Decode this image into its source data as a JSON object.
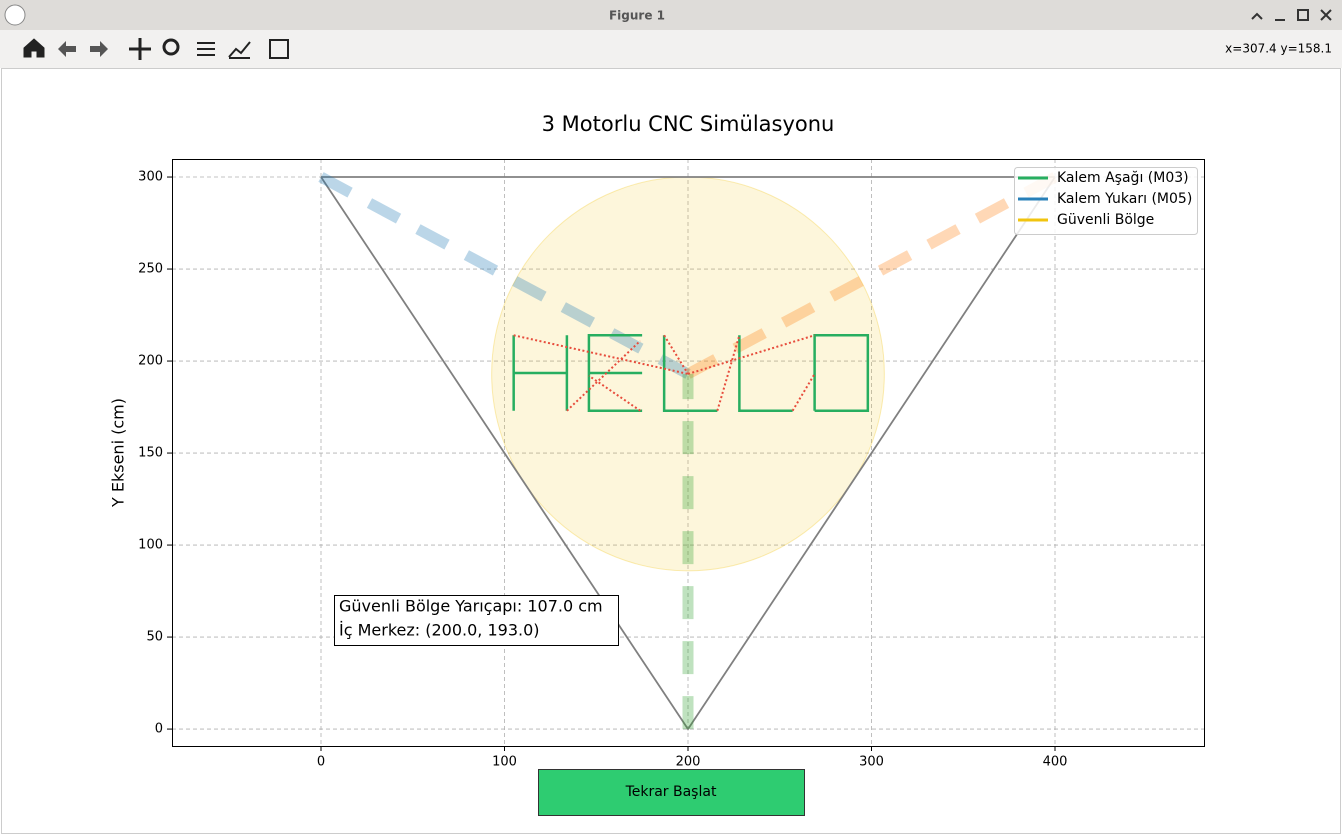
{
  "window": {
    "title": "Figure 1",
    "coords": "x=307.4 y=158.1"
  },
  "chart_data": {
    "type": "line",
    "title": "3 Motorlu CNC Simülasyonu",
    "ylabel": "Y Ekseni (cm)",
    "xlim": [
      -81.2,
      481.2
    ],
    "ylim": [
      -9.2,
      309.8
    ],
    "xticks": [
      0,
      100,
      200,
      300,
      400
    ],
    "yticks": [
      0,
      50,
      100,
      150,
      200,
      250,
      300
    ],
    "grid": true,
    "series": [
      {
        "color": "#808080",
        "linestyle": "solid",
        "linewidth": 1.8,
        "alpha": 1,
        "x": [
          0,
          200,
          400,
          null,
          0,
          400
        ],
        "y": [
          300,
          0,
          300,
          null,
          300,
          300
        ]
      },
      {
        "color": "#1f77b4",
        "linestyle": "dashed",
        "linewidth": 11,
        "alpha": 0.3,
        "x": [
          0,
          200
        ],
        "y": [
          300,
          193
        ]
      },
      {
        "color": "#ff7f0e",
        "linestyle": "dashed",
        "linewidth": 11,
        "alpha": 0.3,
        "x": [
          400,
          200
        ],
        "y": [
          300,
          193
        ]
      },
      {
        "color": "#2ca02c",
        "linestyle": "dashed",
        "linewidth": 11,
        "alpha": 0.3,
        "x": [
          200,
          200
        ],
        "y": [
          0,
          193
        ]
      },
      {
        "color": "#27ae60",
        "linestyle": "solid",
        "linewidth": 2.5,
        "alpha": 1,
        "x": [
          105,
          105,
          null,
          134,
          134,
          null,
          105,
          134,
          null,
          175,
          146,
          146,
          175,
          null,
          146,
          175,
          null,
          187,
          187,
          216,
          null,
          228,
          228,
          257,
          null,
          269,
          269,
          298,
          298,
          269
        ],
        "y": [
          173,
          214,
          null,
          173,
          214,
          null,
          193.5,
          193.5,
          null,
          214,
          214,
          173,
          173,
          null,
          193.5,
          193.5,
          null,
          214,
          173,
          173,
          null,
          214,
          173,
          173,
          null,
          173,
          214,
          214,
          173,
          173
        ]
      },
      {
        "color": "#e74c3c",
        "linestyle": "dotted",
        "linewidth": 2,
        "alpha": 1,
        "x": [
          105,
          200,
          null,
          134,
          174,
          null,
          174,
          146,
          null,
          187,
          200,
          null,
          216,
          228,
          null,
          200,
          269,
          null,
          257,
          269
        ],
        "y": [
          214,
          193,
          null,
          173,
          211,
          null,
          173,
          192,
          null,
          214,
          193,
          null,
          173,
          214,
          null,
          193,
          214,
          null,
          173,
          193
        ]
      }
    ],
    "circle": {
      "center": [
        200,
        193
      ],
      "radius": 107,
      "color": "#f1c40f",
      "alpha": 0.15
    },
    "legend": {
      "loc": "upper right",
      "items": [
        {
          "label": "Kalem Aşağı (M03)",
          "color": "#27ae60"
        },
        {
          "label": "Kalem Yukarı (M05)",
          "color": "#2980b9"
        },
        {
          "label": "Güvenli Bölge",
          "color": "#f1c40f"
        }
      ]
    },
    "annotations": [
      "Güvenli Bölge Yarıçapı: 107.0 cm",
      "İç Merkez: (200.0, 193.0)"
    ]
  },
  "button": {
    "label": "Tekrar Başlat",
    "color": "#2ecc71"
  }
}
